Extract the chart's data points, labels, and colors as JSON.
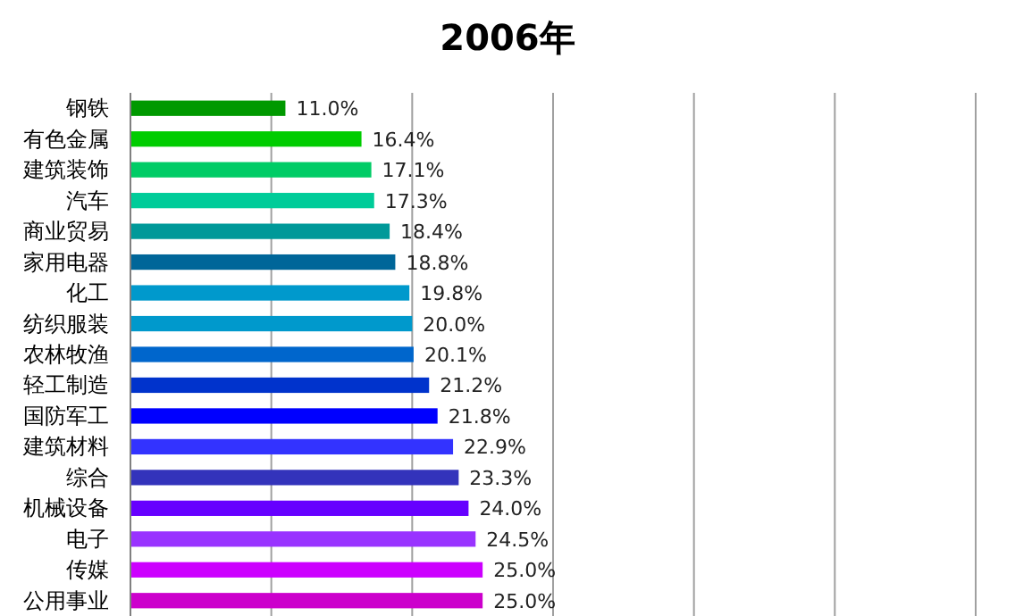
{
  "chart_data": {
    "type": "bar",
    "orientation": "horizontal",
    "title": "2006年",
    "categories": [
      "钢铁",
      "有色金属",
      "建筑装饰",
      "汽车",
      "商业贸易",
      "家用电器",
      "化工",
      "纺织服装",
      "农林牧渔",
      "轻工制造",
      "国防军工",
      "建筑材料",
      "综合",
      "机械设备",
      "电子",
      "传媒",
      "公用事业"
    ],
    "values": [
      11.0,
      16.4,
      17.1,
      17.3,
      18.4,
      18.8,
      19.8,
      20.0,
      20.1,
      21.2,
      21.8,
      22.9,
      23.3,
      24.0,
      24.5,
      25.0,
      25.0
    ],
    "value_labels": [
      "11.0%",
      "16.4%",
      "17.1%",
      "17.3%",
      "18.4%",
      "18.8%",
      "19.8%",
      "20.0%",
      "20.1%",
      "21.2%",
      "21.8%",
      "22.9%",
      "23.3%",
      "24.0%",
      "24.5%",
      "25.0%",
      "25.0%"
    ],
    "colors": [
      "#009900",
      "#00cc00",
      "#00cc66",
      "#00cc99",
      "#009999",
      "#006699",
      "#0099cc",
      "#0099cc",
      "#0066cc",
      "#0033cc",
      "#0000ff",
      "#3333ff",
      "#3333bb",
      "#6600ff",
      "#9933ff",
      "#cc00ff",
      "#cc00cc"
    ],
    "xlim": [
      0,
      60
    ],
    "xticks": [
      {
        "value": 0,
        "label": null
      },
      {
        "value": 10,
        "label": null
      },
      {
        "value": 20,
        "label": null
      },
      {
        "value": 30,
        "label": null
      },
      {
        "value": 40,
        "label": null
      },
      {
        "value": 50,
        "label": null
      },
      {
        "value": 60,
        "label": null
      }
    ],
    "grid": "x",
    "tick_labels": "y"
  }
}
